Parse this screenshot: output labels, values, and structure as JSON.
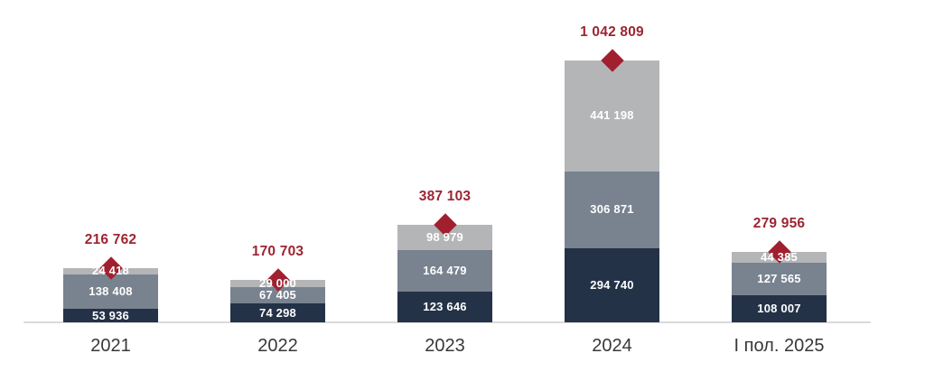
{
  "chart_data": {
    "type": "bar",
    "stacked": true,
    "categories": [
      "2021",
      "2022",
      "2023",
      "2024",
      "І пол. 2025"
    ],
    "series": [
      {
        "name": "segment-bottom-dark-navy",
        "color": "#243247",
        "values": [
          53936,
          74298,
          123646,
          294740,
          108007
        ],
        "labels": [
          "53 936",
          "74 298",
          "123 646",
          "294 740",
          "108 007"
        ]
      },
      {
        "name": "segment-middle-slate",
        "color": "#79828F",
        "values": [
          138408,
          67405,
          164479,
          306871,
          127565
        ],
        "labels": [
          "138 408",
          "67 405",
          "164 479",
          "306 871",
          "127 565"
        ]
      },
      {
        "name": "segment-top-light-gray",
        "color": "#B4B5B7",
        "values": [
          24418,
          29000,
          98979,
          441198,
          44385
        ],
        "labels": [
          "24 418",
          "29 000",
          "98 979",
          "441 198",
          "44 385"
        ]
      }
    ],
    "totals": {
      "marker": "diamond",
      "marker_color": "#A1202F",
      "label_color": "#9C2531",
      "values": [
        216762,
        170703,
        387103,
        1042809,
        279956
      ],
      "labels": [
        "216 762",
        "170 703",
        "387 103",
        "1 042 809",
        "279 956"
      ]
    },
    "ylim": [
      0,
      1100000
    ],
    "grid": false,
    "legend": "none",
    "axis": {
      "baseline_color": "#DADADA",
      "category_label_color": "#383838"
    }
  }
}
